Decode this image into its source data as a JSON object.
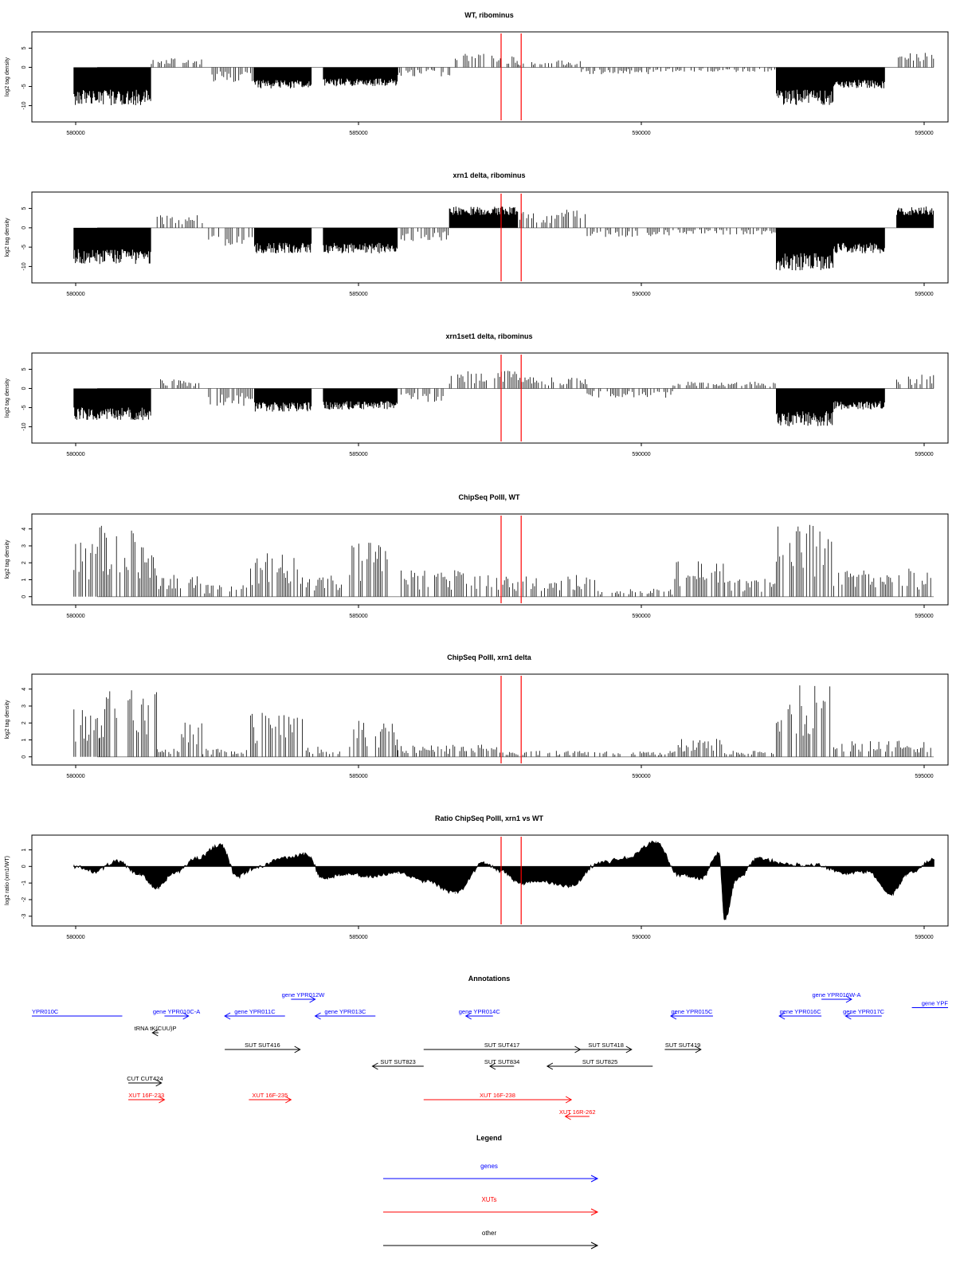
{
  "chart_data": [
    {
      "type": "bar",
      "title": "WT, ribominus",
      "ylabel": "log2 tag density",
      "xlabel": "",
      "xlim": [
        579700,
        594900
      ],
      "ylim": [
        -13,
        8
      ],
      "yticks": [
        "5",
        "0",
        "-5",
        "-10"
      ],
      "xticks": [
        "580000",
        "585000",
        "590000",
        "595000"
      ],
      "vlines": [
        587300,
        587650
      ],
      "segments": [
        {
          "start": 579850,
          "end": 581200,
          "value": -9
        },
        {
          "start": 581200,
          "end": 582100,
          "value": 2
        },
        {
          "start": 582200,
          "end": 583000,
          "value": -3.5
        },
        {
          "start": 583000,
          "end": 584000,
          "value": -5
        },
        {
          "start": 584200,
          "end": 585500,
          "value": -4.5
        },
        {
          "start": 585500,
          "end": 586500,
          "value": -2
        },
        {
          "start": 586500,
          "end": 587600,
          "value": 3
        },
        {
          "start": 587600,
          "end": 588700,
          "value": 1.5
        },
        {
          "start": 588700,
          "end": 590000,
          "value": -1.5
        },
        {
          "start": 590000,
          "end": 592100,
          "value": -1
        },
        {
          "start": 592100,
          "end": 593100,
          "value": -9
        },
        {
          "start": 593100,
          "end": 594000,
          "value": -5
        },
        {
          "start": 594200,
          "end": 594850,
          "value": 3.5
        }
      ]
    },
    {
      "type": "bar",
      "title": "xrn1 delta, ribominus",
      "ylabel": "log2 tag density",
      "xlabel": "",
      "xlim": [
        579700,
        594900
      ],
      "ylim": [
        -13,
        8
      ],
      "yticks": [
        "5",
        "0",
        "-5",
        "-10"
      ],
      "xticks": [
        "580000",
        "585000",
        "590000",
        "595000"
      ],
      "vlines": [
        587300,
        587650
      ],
      "segments": [
        {
          "start": 579850,
          "end": 581200,
          "value": -8.5
        },
        {
          "start": 581300,
          "end": 582100,
          "value": 3
        },
        {
          "start": 582200,
          "end": 583000,
          "value": -4
        },
        {
          "start": 583000,
          "end": 584000,
          "value": -6
        },
        {
          "start": 584200,
          "end": 585500,
          "value": -6
        },
        {
          "start": 585500,
          "end": 586400,
          "value": -3
        },
        {
          "start": 586400,
          "end": 587600,
          "value": 5
        },
        {
          "start": 587600,
          "end": 588800,
          "value": 4
        },
        {
          "start": 588800,
          "end": 590300,
          "value": -2
        },
        {
          "start": 590300,
          "end": 592100,
          "value": -1.5
        },
        {
          "start": 592100,
          "end": 593100,
          "value": -10
        },
        {
          "start": 593100,
          "end": 594000,
          "value": -6
        },
        {
          "start": 594200,
          "end": 594850,
          "value": 5
        }
      ]
    },
    {
      "type": "bar",
      "title": "xrn1set1 delta, ribominus",
      "ylabel": "log2 tag density",
      "xlabel": "",
      "xlim": [
        579700,
        594900
      ],
      "ylim": [
        -13,
        8
      ],
      "yticks": [
        "5",
        "0",
        "-5",
        "-10"
      ],
      "xticks": [
        "580000",
        "585000",
        "590000",
        "595000"
      ],
      "vlines": [
        587300,
        587650
      ],
      "segments": [
        {
          "start": 579850,
          "end": 581200,
          "value": -7.5
        },
        {
          "start": 581300,
          "end": 582100,
          "value": 2
        },
        {
          "start": 582200,
          "end": 583000,
          "value": -4
        },
        {
          "start": 583000,
          "end": 584000,
          "value": -5.5
        },
        {
          "start": 584200,
          "end": 585500,
          "value": -5
        },
        {
          "start": 585500,
          "end": 586400,
          "value": -3
        },
        {
          "start": 586400,
          "end": 587600,
          "value": 4
        },
        {
          "start": 587600,
          "end": 588800,
          "value": 2.5
        },
        {
          "start": 588800,
          "end": 590300,
          "value": -2
        },
        {
          "start": 590300,
          "end": 592100,
          "value": 1.5
        },
        {
          "start": 592100,
          "end": 593100,
          "value": -9
        },
        {
          "start": 593100,
          "end": 594000,
          "value": -5
        },
        {
          "start": 594200,
          "end": 594850,
          "value": 3
        }
      ]
    },
    {
      "type": "bar",
      "title": "ChipSeq PolII, WT",
      "ylabel": "log2 tag density",
      "xlabel": "",
      "xlim": [
        579700,
        594900
      ],
      "ylim": [
        -0.2,
        4.6
      ],
      "yticks": [
        "4",
        "3",
        "2",
        "1",
        "0"
      ],
      "xticks": [
        "580000",
        "585000",
        "590000",
        "595000"
      ],
      "vlines": [
        587300,
        587650
      ],
      "segments": [
        {
          "start": 579850,
          "end": 580300,
          "value": 2.8
        },
        {
          "start": 580300,
          "end": 581300,
          "value": 3.6
        },
        {
          "start": 581300,
          "end": 582100,
          "value": 1.2
        },
        {
          "start": 582100,
          "end": 582900,
          "value": 0.6
        },
        {
          "start": 582900,
          "end": 583900,
          "value": 2.3
        },
        {
          "start": 583900,
          "end": 584700,
          "value": 1.1
        },
        {
          "start": 584700,
          "end": 585500,
          "value": 2.7
        },
        {
          "start": 585500,
          "end": 587300,
          "value": 1.3
        },
        {
          "start": 587300,
          "end": 589000,
          "value": 1.1
        },
        {
          "start": 589000,
          "end": 590300,
          "value": 0.4
        },
        {
          "start": 590300,
          "end": 591200,
          "value": 1.8
        },
        {
          "start": 591200,
          "end": 592100,
          "value": 0.9
        },
        {
          "start": 592100,
          "end": 593100,
          "value": 3.8
        },
        {
          "start": 593100,
          "end": 594850,
          "value": 1.4
        }
      ]
    },
    {
      "type": "bar",
      "title": "ChipSeq PolII, xrn1 delta",
      "ylabel": "log2 tag density",
      "xlabel": "",
      "xlim": [
        579700,
        594900
      ],
      "ylim": [
        -0.2,
        4.6
      ],
      "yticks": [
        "4",
        "3",
        "2",
        "1",
        "0"
      ],
      "xticks": [
        "580000",
        "585000",
        "590000",
        "595000"
      ],
      "vlines": [
        587300,
        587650
      ],
      "segments": [
        {
          "start": 579850,
          "end": 580300,
          "value": 2.5
        },
        {
          "start": 580300,
          "end": 581300,
          "value": 3.3
        },
        {
          "start": 581300,
          "end": 581700,
          "value": 0.4
        },
        {
          "start": 581700,
          "end": 582100,
          "value": 1.8
        },
        {
          "start": 582100,
          "end": 582900,
          "value": 0.4
        },
        {
          "start": 582900,
          "end": 583900,
          "value": 2.2
        },
        {
          "start": 583900,
          "end": 584700,
          "value": 0.5
        },
        {
          "start": 584700,
          "end": 585500,
          "value": 1.8
        },
        {
          "start": 585500,
          "end": 587300,
          "value": 0.6
        },
        {
          "start": 587300,
          "end": 590300,
          "value": 0.3
        },
        {
          "start": 590300,
          "end": 591200,
          "value": 0.9
        },
        {
          "start": 591200,
          "end": 592100,
          "value": 0.3
        },
        {
          "start": 592100,
          "end": 593100,
          "value": 3.7
        },
        {
          "start": 593100,
          "end": 594850,
          "value": 0.8
        }
      ]
    },
    {
      "type": "area",
      "title": "Ratio ChipSeq PolII, xrn1 vs WT",
      "ylabel": "log2 ratio (xrn1/WT)",
      "xlabel": "",
      "xlim": [
        579700,
        594900
      ],
      "ylim": [
        -3.3,
        1.6
      ],
      "yticks": [
        "1",
        "0",
        "-1",
        "-2",
        "-3"
      ],
      "xticks": [
        "580000",
        "585000",
        "590000",
        "595000"
      ],
      "vlines": [
        587300,
        587650
      ],
      "x": [
        579850,
        580200,
        580600,
        581000,
        581300,
        581600,
        582000,
        582400,
        582700,
        583000,
        583500,
        583900,
        584200,
        584600,
        585000,
        585500,
        586000,
        586500,
        587000,
        587300,
        587650,
        588000,
        588500,
        589000,
        589500,
        590000,
        590400,
        590800,
        591100,
        591200,
        591400,
        591800,
        592300,
        592800,
        593300,
        593700,
        594100,
        594400,
        594850
      ],
      "y": [
        0.0,
        -0.3,
        0.3,
        -0.5,
        -1.3,
        -0.4,
        0.5,
        1.3,
        -0.6,
        -0.1,
        0.5,
        0.7,
        -0.7,
        -0.4,
        -0.6,
        -0.4,
        -0.9,
        -1.6,
        0.2,
        -0.3,
        -1.0,
        -0.9,
        -1.2,
        0.2,
        0.5,
        1.5,
        -0.5,
        -0.7,
        0.8,
        -3.2,
        -0.8,
        0.5,
        0.1,
        0.1,
        -0.4,
        -0.3,
        -1.7,
        -0.4,
        0.4
      ]
    }
  ],
  "annotations": {
    "title": "Annotations",
    "xlim": [
      579700,
      594900
    ],
    "features": [
      {
        "label": "YPR010C",
        "kind": "gene",
        "start": 579700,
        "end": 581200,
        "dir": "none",
        "row": 0
      },
      {
        "label": "gene YPR010C-A",
        "kind": "gene",
        "start": 581900,
        "end": 582300,
        "dir": "right",
        "row": 0
      },
      {
        "label": "gene YPR011C",
        "kind": "gene",
        "start": 582900,
        "end": 583900,
        "dir": "left",
        "row": 0
      },
      {
        "label": "gene YPR012W",
        "kind": "gene",
        "start": 584000,
        "end": 584400,
        "dir": "right",
        "row": -1
      },
      {
        "label": "gene YPR013C",
        "kind": "gene",
        "start": 584400,
        "end": 585400,
        "dir": "left",
        "row": 0
      },
      {
        "label": "gene YPR014C",
        "kind": "gene",
        "start": 586900,
        "end": 587350,
        "dir": "left",
        "row": 0
      },
      {
        "label": "gene YPR015C",
        "kind": "gene",
        "start": 590300,
        "end": 591000,
        "dir": "left",
        "row": 0
      },
      {
        "label": "gene YPR016W-A",
        "kind": "gene",
        "start": 592800,
        "end": 593300,
        "dir": "right",
        "row": -1
      },
      {
        "label": "gene YPR016C",
        "kind": "gene",
        "start": 592100,
        "end": 592800,
        "dir": "left",
        "row": 0
      },
      {
        "label": "gene YPR017C",
        "kind": "gene",
        "start": 593200,
        "end": 593800,
        "dir": "left",
        "row": 0
      },
      {
        "label": "gene YPF",
        "kind": "gene",
        "start": 594300,
        "end": 594900,
        "dir": "none",
        "row": -0.5
      },
      {
        "label": "tRNA tK(CUU)P",
        "kind": "other",
        "start": 581700,
        "end": 581800,
        "dir": "left",
        "row": 1
      },
      {
        "label": "SUT SUT416",
        "kind": "other",
        "start": 582900,
        "end": 584150,
        "dir": "right",
        "row": 2
      },
      {
        "label": "SUT SUT417",
        "kind": "other",
        "start": 586200,
        "end": 588800,
        "dir": "right",
        "row": 2
      },
      {
        "label": "SUT SUT418",
        "kind": "other",
        "start": 588800,
        "end": 589650,
        "dir": "right",
        "row": 2
      },
      {
        "label": "SUT SUT419",
        "kind": "other",
        "start": 590200,
        "end": 590800,
        "dir": "right",
        "row": 2
      },
      {
        "label": "SUT SUT823",
        "kind": "other",
        "start": 585350,
        "end": 586200,
        "dir": "left",
        "row": 3
      },
      {
        "label": "SUT SUT834",
        "kind": "other",
        "start": 587300,
        "end": 587700,
        "dir": "left",
        "row": 3
      },
      {
        "label": "SUT SUT825",
        "kind": "other",
        "start": 588250,
        "end": 590000,
        "dir": "left",
        "row": 3
      },
      {
        "label": "CUT CUT424",
        "kind": "other",
        "start": 581300,
        "end": 581850,
        "dir": "right",
        "row": 4
      },
      {
        "label": "XUT 16F-233",
        "kind": "xut",
        "start": 581300,
        "end": 581900,
        "dir": "right",
        "row": 5
      },
      {
        "label": "XUT 16F-235",
        "kind": "xut",
        "start": 583300,
        "end": 584000,
        "dir": "right",
        "row": 5
      },
      {
        "label": "XUT 16F-238",
        "kind": "xut",
        "start": 586200,
        "end": 588650,
        "dir": "right",
        "row": 5
      },
      {
        "label": "XUT 16R-262",
        "kind": "xut",
        "start": 588550,
        "end": 588950,
        "dir": "left",
        "row": 6
      }
    ]
  },
  "legend": {
    "title": "Legend",
    "items": [
      {
        "label": "genes",
        "color": "#0000ff"
      },
      {
        "label": "XUTs",
        "color": "#ff0000"
      },
      {
        "label": "other",
        "color": "#000000"
      }
    ]
  },
  "colors": {
    "marker": "#ff0000",
    "gene": "#0000ff",
    "xut": "#ff0000",
    "other": "#000000",
    "data": "#000000"
  }
}
